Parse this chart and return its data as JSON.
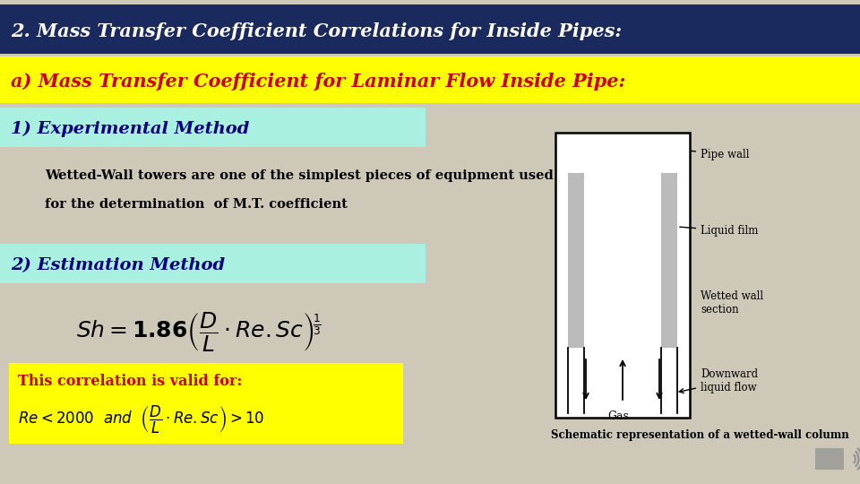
{
  "bg_color": "#cec8b8",
  "title_text": "2. Mass Transfer Coefficient Correlations for Inside Pipes:",
  "title_bg": "#1a2a5e",
  "title_color": "#ffffff",
  "subtitle_text": "a) Mass Transfer Coefficient for Laminar Flow Inside Pipe:",
  "subtitle_bg": "#ffff00",
  "subtitle_color": "#cc0000",
  "section1_text": "1) Experimental Method",
  "section1_bg": "#aaf0e0",
  "section1_color": "#000080",
  "section2_text": "2) Estimation Method",
  "section2_bg": "#aaf0e0",
  "section2_color": "#000080",
  "body_text1": "Wetted-Wall towers are one of the simplest pieces of equipment used",
  "body_text2": "for the determination  of M.T. coefficient",
  "validity_bg": "#ffff00",
  "validity_title": "This correlation is valid for:",
  "validity_title_color": "#cc0000",
  "validity_color": "#000000",
  "caption": "Schematic representation of a wetted-wall column"
}
